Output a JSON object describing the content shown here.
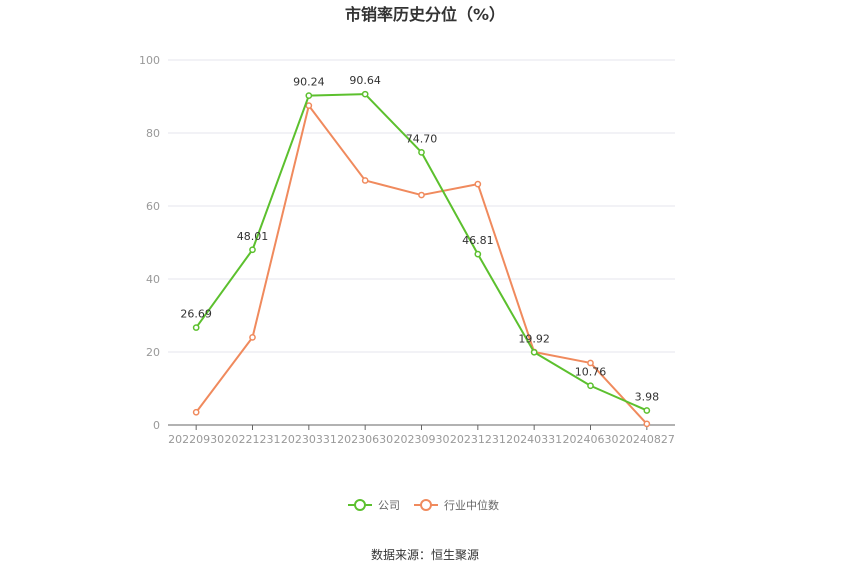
{
  "chart_data": {
    "type": "line",
    "title": "市销率历史分位（%）",
    "categories": [
      "20220930",
      "20221231",
      "20230331",
      "20230630",
      "20230930",
      "20231231",
      "20240331",
      "20240630",
      "20240827"
    ],
    "ylim": [
      0,
      100
    ],
    "yticks": [
      0,
      20,
      40,
      60,
      80,
      100
    ],
    "grid": true,
    "legend_position": "bottom",
    "series": [
      {
        "name": "公司",
        "color": "#5cc02e",
        "values": [
          26.69,
          48.01,
          90.24,
          90.64,
          74.7,
          46.81,
          19.92,
          10.76,
          3.98
        ],
        "labels": [
          "26.69",
          "48.01",
          "90.24",
          "90.64",
          "74.70",
          "46.81",
          "19.92",
          "10.76",
          "3.98"
        ]
      },
      {
        "name": "行业中位数",
        "color": "#f08a5d",
        "values": [
          3.5,
          24.0,
          87.5,
          67.0,
          63.0,
          66.0,
          20.0,
          17.0,
          0.3
        ]
      }
    ]
  },
  "source_text": "数据来源：恒生聚源"
}
